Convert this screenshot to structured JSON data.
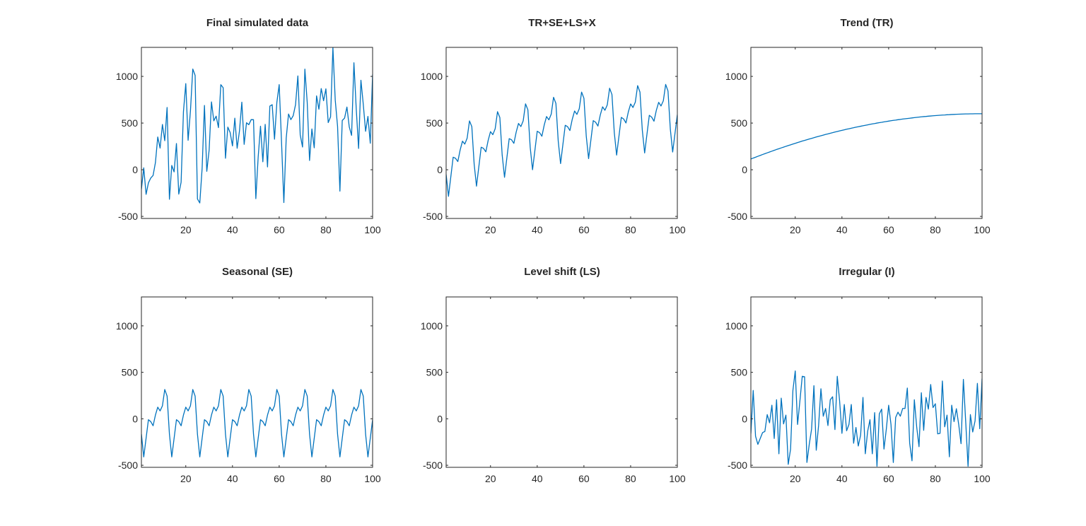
{
  "figure": {
    "background": "#ffffff",
    "line_color": "#0072bd",
    "axis_color": "#262626"
  },
  "chart_data": [
    {
      "id": "final",
      "type": "line",
      "title": "Final simulated data",
      "xlabel": "",
      "ylabel": "",
      "xlim": [
        1,
        100
      ],
      "ylim": [
        -522,
        1311
      ],
      "xticks": [
        20,
        40,
        60,
        80,
        100
      ],
      "yticks": [
        -500,
        0,
        500,
        1000
      ],
      "grid": false,
      "legend": null,
      "x_start": 1,
      "values": [
        -210,
        20,
        -263,
        -141,
        -89,
        -61,
        76,
        351,
        232,
        485,
        311,
        667,
        -316,
        46,
        -23,
        281,
        -261,
        -134,
        620,
        923,
        315,
        631,
        1079,
        1011,
        -313,
        -356,
        15,
        689,
        -17,
        210,
        727,
        524,
        574,
        451,
        911,
        879,
        123,
        457,
        398,
        255,
        552,
        230,
        418,
        724,
        272,
        503,
        483,
        537,
        536,
        -310,
        135,
        466,
        85,
        486,
        30,
        682,
        697,
        327,
        721,
        912,
        299,
        -351,
        337,
        597,
        537,
        579,
        697,
        1005,
        374,
        243,
        1078,
        720,
        99,
        437,
        235,
        791,
        648,
        870,
        739,
        867,
        505,
        567,
        1308,
        746,
        464,
        -229,
        528,
        553,
        672,
        459,
        368,
        1146,
        648,
        228,
        959,
        702,
        412,
        571,
        284,
        1022
      ]
    },
    {
      "id": "tr_se_ls_x",
      "type": "line",
      "title": "TR+SE+LS+X",
      "xlabel": "",
      "ylabel": "",
      "xlim": [
        1,
        100
      ],
      "ylim": [
        -522,
        1311
      ],
      "xticks": [
        20,
        40,
        60,
        80,
        100
      ],
      "yticks": [
        -500,
        0,
        500,
        1000
      ],
      "grid": false,
      "legend": null,
      "x_start": 1,
      "values": [
        -50,
        -285,
        -76,
        134,
        123,
        88,
        212,
        306,
        275,
        339,
        523,
        462,
        60,
        -176,
        32,
        241,
        229,
        192,
        315,
        408,
        376,
        439,
        622,
        559,
        157,
        -81,
        126,
        333,
        321,
        283,
        404,
        496,
        463,
        524,
        706,
        642,
        239,
        0,
        206,
        412,
        398,
        359,
        479,
        570,
        535,
        596,
        776,
        711,
        306,
        66,
        271,
        476,
        461,
        420,
        540,
        629,
        593,
        653,
        832,
        766,
        360,
        119,
        322,
        526,
        509,
        468,
        586,
        674,
        637,
        695,
        873,
        806,
        399,
        157,
        359,
        561,
        544,
        501,
        618,
        705,
        667,
        724,
        901,
        832,
        424,
        180,
        382,
        583,
        564,
        520,
        636,
        722,
        683,
        738,
        914,
        844,
        435,
        190,
        390,
        590
      ]
    },
    {
      "id": "trend",
      "type": "line",
      "title": "Trend (TR)",
      "xlabel": "",
      "ylabel": "",
      "xlim": [
        1,
        100
      ],
      "ylim": [
        -522,
        1311
      ],
      "xticks": [
        20,
        40,
        60,
        80,
        100
      ],
      "yticks": [
        -500,
        0,
        500,
        1000
      ],
      "grid": false,
      "legend": null,
      "x_start": 1,
      "values": [
        115,
        125,
        134,
        144,
        153,
        163,
        172,
        181,
        190,
        199,
        208,
        217,
        225,
        234,
        242,
        251,
        259,
        267,
        275,
        283,
        291,
        299,
        307,
        314,
        322,
        329,
        336,
        343,
        351,
        358,
        364,
        371,
        378,
        384,
        391,
        397,
        404,
        410,
        416,
        422,
        428,
        434,
        439,
        445,
        450,
        456,
        461,
        466,
        471,
        476,
        481,
        486,
        491,
        495,
        500,
        504,
        508,
        513,
        517,
        521,
        525,
        529,
        532,
        536,
        539,
        543,
        546,
        549,
        552,
        555,
        558,
        561,
        564,
        567,
        569,
        571,
        574,
        576,
        578,
        580,
        582,
        584,
        586,
        587,
        589,
        590,
        592,
        593,
        594,
        595,
        596,
        597,
        598,
        598,
        599,
        599,
        600,
        600,
        600,
        600
      ]
    },
    {
      "id": "seasonal",
      "type": "line",
      "title": "Seasonal (SE)",
      "xlabel": "",
      "ylabel": "",
      "xlim": [
        1,
        100
      ],
      "ylim": [
        -522,
        1311
      ],
      "xticks": [
        20,
        40,
        60,
        80,
        100
      ],
      "yticks": [
        -500,
        0,
        500,
        1000
      ],
      "grid": false,
      "legend": null,
      "x_start": 1,
      "period": 12,
      "values": [
        -165,
        -410,
        -210,
        -10,
        -30,
        -75,
        40,
        125,
        85,
        140,
        315,
        245,
        -165,
        -410,
        -210,
        -10,
        -30,
        -75,
        40,
        125,
        85,
        140,
        315,
        245,
        -165,
        -410,
        -210,
        -10,
        -30,
        -75,
        40,
        125,
        85,
        140,
        315,
        245,
        -165,
        -410,
        -210,
        -10,
        -30,
        -75,
        40,
        125,
        85,
        140,
        315,
        245,
        -165,
        -410,
        -210,
        -10,
        -30,
        -75,
        40,
        125,
        85,
        140,
        315,
        245,
        -165,
        -410,
        -210,
        -10,
        -30,
        -75,
        40,
        125,
        85,
        140,
        315,
        245,
        -165,
        -410,
        -210,
        -10,
        -30,
        -75,
        40,
        125,
        85,
        140,
        315,
        245,
        -165,
        -410,
        -210,
        -10,
        -30,
        -75,
        40,
        125,
        85,
        140,
        315,
        245,
        -165,
        -410,
        -210,
        -10
      ]
    },
    {
      "id": "level_shift",
      "type": "line",
      "title": "Level shift (LS)",
      "xlabel": "",
      "ylabel": "",
      "xlim": [
        1,
        100
      ],
      "ylim": [
        -522,
        1311
      ],
      "xticks": [
        20,
        40,
        60,
        80,
        100
      ],
      "yticks": [
        -500,
        0,
        500,
        1000
      ],
      "grid": false,
      "legend": null,
      "x_start": 1,
      "values": []
    },
    {
      "id": "irregular",
      "type": "line",
      "title": "Irregular (I)",
      "xlabel": "",
      "ylabel": "",
      "xlim": [
        1,
        100
      ],
      "ylim": [
        -522,
        1311
      ],
      "xticks": [
        20,
        40,
        60,
        80,
        100
      ],
      "yticks": [
        -500,
        0,
        500,
        1000
      ],
      "grid": false,
      "legend": null,
      "x_start": 1,
      "values": [
        -160,
        305,
        -187,
        -275,
        -212,
        -149,
        -136,
        45,
        -43,
        146,
        -212,
        205,
        -376,
        222,
        -55,
        40,
        -490,
        -326,
        305,
        515,
        -61,
        192,
        457,
        452,
        -470,
        -275,
        -111,
        356,
        -338,
        -73,
        323,
        28,
        111,
        -73,
        205,
        237,
        -116,
        457,
        192,
        -157,
        154,
        -129,
        -61,
        154,
        -263,
        -93,
        -293,
        -174,
        230,
        -376,
        -136,
        -10,
        -376,
        66,
        -510,
        53,
        104,
        -326,
        -111,
        146,
        -61,
        -470,
        15,
        71,
        28,
        111,
        111,
        331,
        -263,
        -452,
        205,
        -86,
        -300,
        280,
        -124,
        230,
        104,
        369,
        121,
        162,
        -162,
        -157,
        407,
        -86,
        40,
        -409,
        146,
        -30,
        108,
        -61,
        -268,
        424,
        -35,
        -510,
        45,
        -142,
        -23,
        381,
        -106,
        432
      ]
    }
  ]
}
